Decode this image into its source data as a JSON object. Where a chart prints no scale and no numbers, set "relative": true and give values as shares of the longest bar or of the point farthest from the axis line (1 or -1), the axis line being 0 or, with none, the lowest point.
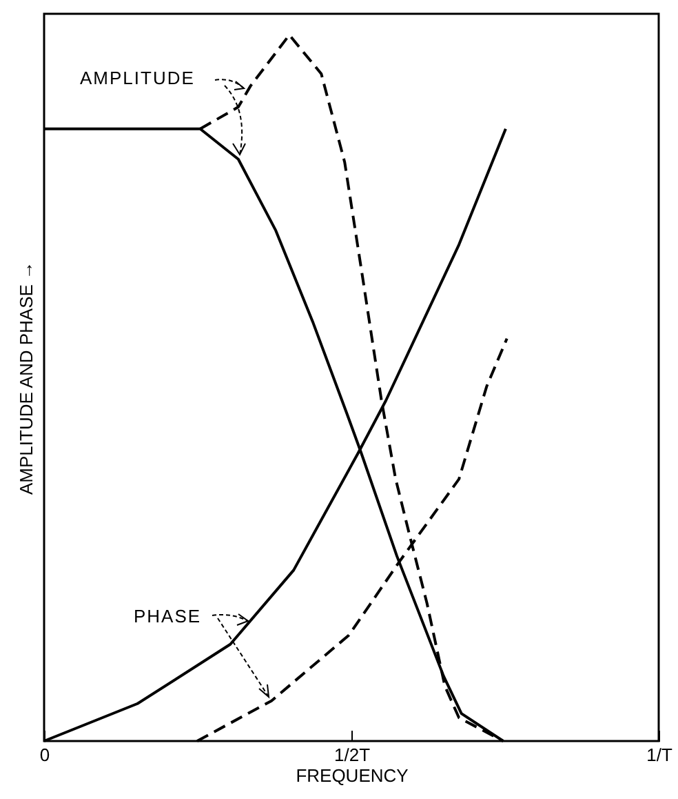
{
  "chart_data": {
    "type": "line",
    "relative": true,
    "xlabel": "FREQUENCY",
    "ylabel": "AMPLITUDE AND PHASE →",
    "xlim": [
      0,
      1
    ],
    "xticks": [
      0,
      {
        "value": 0.5,
        "label": "1/2T"
      },
      {
        "value": 1,
        "label": "1/T"
      }
    ],
    "grid": false,
    "annotations": [
      "AMPLITUDE",
      "PHASE"
    ],
    "series": [
      {
        "color": "#000000",
        "line_style": "solid",
        "x": [
          0,
          0.254,
          0.316,
          0.377,
          0.437,
          0.493,
          0.516,
          0.574,
          0.65,
          0.679,
          0.747
        ],
        "values": [
          0.867,
          0.867,
          0.824,
          0.723,
          0.594,
          0.463,
          0.408,
          0.262,
          0.092,
          0.039,
          0
        ]
      },
      {
        "color": "#000000",
        "line_style": "dashed",
        "x": [
          0.254,
          0.316,
          0.336,
          0.399,
          0.451,
          0.489,
          0.518,
          0.549,
          0.572,
          0.596,
          0.623,
          0.652,
          0.675,
          0.747
        ],
        "values": [
          0.867,
          0.898,
          0.928,
          1,
          0.945,
          0.82,
          0.658,
          0.482,
          0.371,
          0.287,
          0.195,
          0.078,
          0.033,
          0
        ]
      },
      {
        "color": "#000000",
        "line_style": "solid",
        "x": [
          0,
          0.152,
          0.303,
          0.406,
          0.511,
          0.556,
          0.675,
          0.751
        ],
        "values": [
          0,
          0.053,
          0.137,
          0.242,
          0.408,
          0.482,
          0.703,
          0.867
        ]
      },
      {
        "color": "#000000",
        "line_style": "dashed",
        "x": [
          0.249,
          0.37,
          0.496,
          0.578,
          0.675,
          0.72,
          0.753
        ],
        "values": [
          0,
          0.057,
          0.15,
          0.254,
          0.371,
          0.502,
          0.57
        ]
      }
    ]
  }
}
